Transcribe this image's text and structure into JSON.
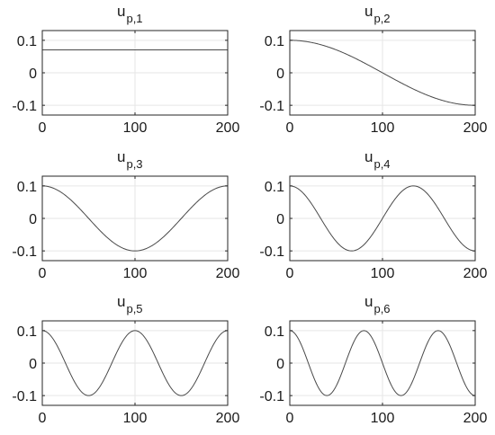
{
  "chart_data": [
    {
      "type": "line",
      "title": {
        "main": "u",
        "sub": "p,1"
      },
      "x": [
        0,
        200
      ],
      "y": [
        0.0707,
        0.0707
      ],
      "xlim": [
        0,
        200
      ],
      "ylim": [
        -0.13,
        0.13
      ],
      "xticks": [
        0,
        100,
        200
      ],
      "xticklabels": [
        "0",
        "100",
        "200"
      ],
      "yticks": [
        0.1,
        0,
        -0.1
      ],
      "yticklabels": [
        "0.1",
        "0",
        "-0.1"
      ],
      "grid": true,
      "series": [
        {
          "function": "constant",
          "amplitude": 0.0707
        }
      ]
    },
    {
      "type": "line",
      "title": {
        "main": "u",
        "sub": "p,2"
      },
      "xlim": [
        0,
        200
      ],
      "ylim": [
        -0.13,
        0.13
      ],
      "xticks": [
        0,
        100,
        200
      ],
      "xticklabels": [
        "0",
        "100",
        "200"
      ],
      "yticks": [
        0.1,
        0,
        -0.1
      ],
      "yticklabels": [
        "0.1",
        "0",
        "-0.1"
      ],
      "grid": true,
      "series": [
        {
          "function": "cosine",
          "amplitude": 0.1,
          "half_periods": 1
        }
      ]
    },
    {
      "type": "line",
      "title": {
        "main": "u",
        "sub": "p,3"
      },
      "xlim": [
        0,
        200
      ],
      "ylim": [
        -0.13,
        0.13
      ],
      "xticks": [
        0,
        100,
        200
      ],
      "xticklabels": [
        "0",
        "100",
        "200"
      ],
      "yticks": [
        0.1,
        0,
        -0.1
      ],
      "yticklabels": [
        "0.1",
        "0",
        "-0.1"
      ],
      "grid": true,
      "series": [
        {
          "function": "cosine",
          "amplitude": 0.1,
          "half_periods": 2
        }
      ]
    },
    {
      "type": "line",
      "title": {
        "main": "u",
        "sub": "p,4"
      },
      "xlim": [
        0,
        200
      ],
      "ylim": [
        -0.13,
        0.13
      ],
      "xticks": [
        0,
        100,
        200
      ],
      "xticklabels": [
        "0",
        "100",
        "200"
      ],
      "yticks": [
        0.1,
        0,
        -0.1
      ],
      "yticklabels": [
        "0.1",
        "0",
        "-0.1"
      ],
      "grid": true,
      "series": [
        {
          "function": "cosine",
          "amplitude": 0.1,
          "half_periods": 3
        }
      ]
    },
    {
      "type": "line",
      "title": {
        "main": "u",
        "sub": "p,5"
      },
      "xlim": [
        0,
        200
      ],
      "ylim": [
        -0.13,
        0.13
      ],
      "xticks": [
        0,
        100,
        200
      ],
      "xticklabels": [
        "0",
        "100",
        "200"
      ],
      "yticks": [
        0.1,
        0,
        -0.1
      ],
      "yticklabels": [
        "0.1",
        "0",
        "-0.1"
      ],
      "grid": true,
      "series": [
        {
          "function": "cosine",
          "amplitude": 0.1,
          "half_periods": 4
        }
      ]
    },
    {
      "type": "line",
      "title": {
        "main": "u",
        "sub": "p,6"
      },
      "xlim": [
        0,
        200
      ],
      "ylim": [
        -0.13,
        0.13
      ],
      "xticks": [
        0,
        100,
        200
      ],
      "xticklabels": [
        "0",
        "100",
        "200"
      ],
      "yticks": [
        0.1,
        0,
        -0.1
      ],
      "yticklabels": [
        "0.1",
        "0",
        "-0.1"
      ],
      "grid": true,
      "series": [
        {
          "function": "cosine",
          "amplitude": 0.1,
          "half_periods": 5
        }
      ]
    }
  ],
  "colors": {
    "line": "#4a4a4a",
    "axes": "#262626",
    "grid": "#e6e6e6"
  }
}
